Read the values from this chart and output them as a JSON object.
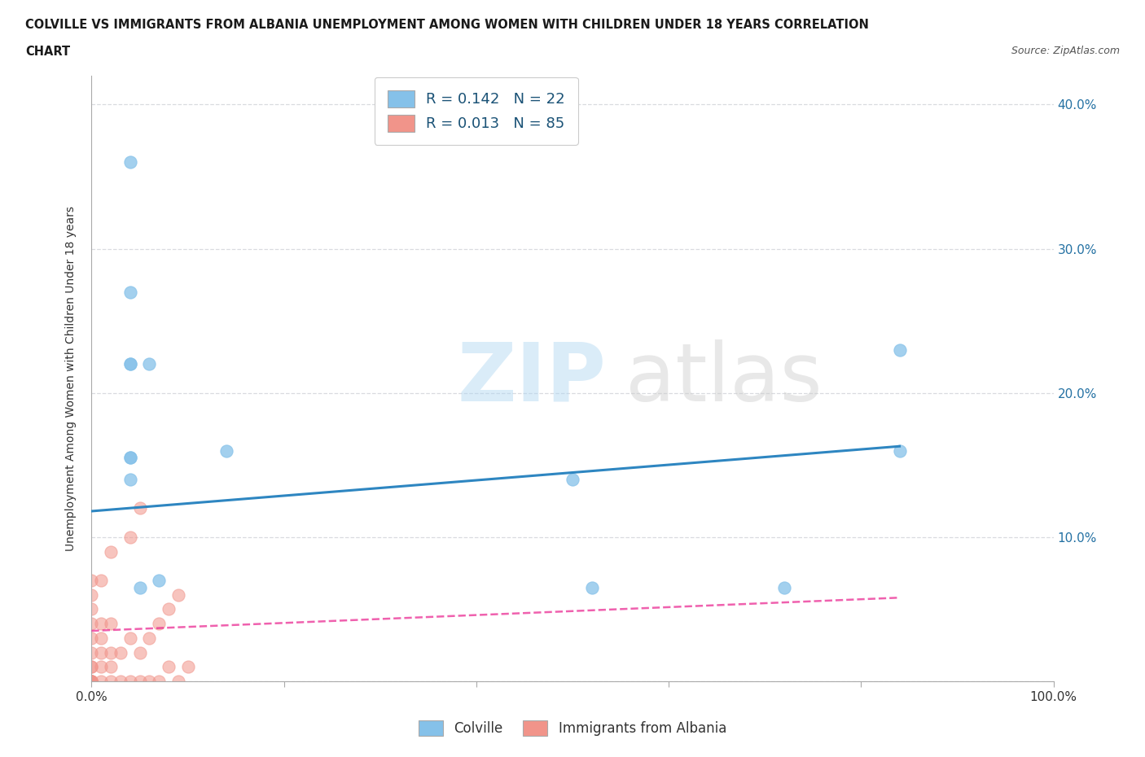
{
  "title_line1": "COLVILLE VS IMMIGRANTS FROM ALBANIA UNEMPLOYMENT AMONG WOMEN WITH CHILDREN UNDER 18 YEARS CORRELATION",
  "title_line2": "CHART",
  "source": "Source: ZipAtlas.com",
  "ylabel": "Unemployment Among Women with Children Under 18 years",
  "xlim": [
    0.0,
    1.0
  ],
  "ylim": [
    0.0,
    0.42
  ],
  "xticks": [
    0.0,
    0.2,
    0.4,
    0.6,
    0.8,
    1.0
  ],
  "xticklabels": [
    "0.0%",
    "",
    "",
    "",
    "",
    "100.0%"
  ],
  "yticks": [
    0.0,
    0.1,
    0.2,
    0.3,
    0.4
  ],
  "yticklabels_right": [
    "",
    "10.0%",
    "20.0%",
    "30.0%",
    "40.0%"
  ],
  "colville_color": "#85c1e9",
  "albania_color": "#f1948a",
  "colville_line_color": "#2e86c1",
  "albania_line_color": "#e91e8c",
  "R_colville": 0.142,
  "N_colville": 22,
  "R_albania": 0.013,
  "N_albania": 85,
  "legend_label_colville": "Colville",
  "legend_label_albania": "Immigrants from Albania",
  "background_color": "#ffffff",
  "grid_color": "#d5d8dc",
  "colville_scatter_x": [
    0.04,
    0.04,
    0.04,
    0.04,
    0.04,
    0.04,
    0.04,
    0.05,
    0.06,
    0.07,
    0.14,
    0.5,
    0.52,
    0.72,
    0.84,
    0.84
  ],
  "colville_scatter_y": [
    0.36,
    0.27,
    0.22,
    0.22,
    0.155,
    0.155,
    0.14,
    0.065,
    0.22,
    0.07,
    0.16,
    0.14,
    0.065,
    0.065,
    0.16,
    0.23
  ],
  "albania_scatter_x": [
    0.0,
    0.0,
    0.0,
    0.0,
    0.0,
    0.0,
    0.0,
    0.0,
    0.0,
    0.0,
    0.0,
    0.0,
    0.0,
    0.0,
    0.0,
    0.0,
    0.0,
    0.01,
    0.01,
    0.01,
    0.01,
    0.01,
    0.01,
    0.02,
    0.02,
    0.02,
    0.02,
    0.02,
    0.03,
    0.03,
    0.04,
    0.04,
    0.04,
    0.05,
    0.05,
    0.05,
    0.06,
    0.06,
    0.07,
    0.07,
    0.08,
    0.08,
    0.09,
    0.09,
    0.1
  ],
  "albania_scatter_y": [
    0.0,
    0.0,
    0.0,
    0.0,
    0.0,
    0.0,
    0.0,
    0.0,
    0.0,
    0.01,
    0.01,
    0.02,
    0.03,
    0.04,
    0.05,
    0.06,
    0.07,
    0.0,
    0.01,
    0.02,
    0.03,
    0.04,
    0.07,
    0.0,
    0.01,
    0.02,
    0.04,
    0.09,
    0.0,
    0.02,
    0.0,
    0.03,
    0.1,
    0.0,
    0.02,
    0.12,
    0.0,
    0.03,
    0.0,
    0.04,
    0.01,
    0.05,
    0.0,
    0.06,
    0.01
  ],
  "colville_trend_x": [
    0.0,
    0.84
  ],
  "colville_trend_y": [
    0.118,
    0.163
  ],
  "albania_trend_x": [
    0.0,
    0.84
  ],
  "albania_trend_y": [
    0.035,
    0.058
  ]
}
